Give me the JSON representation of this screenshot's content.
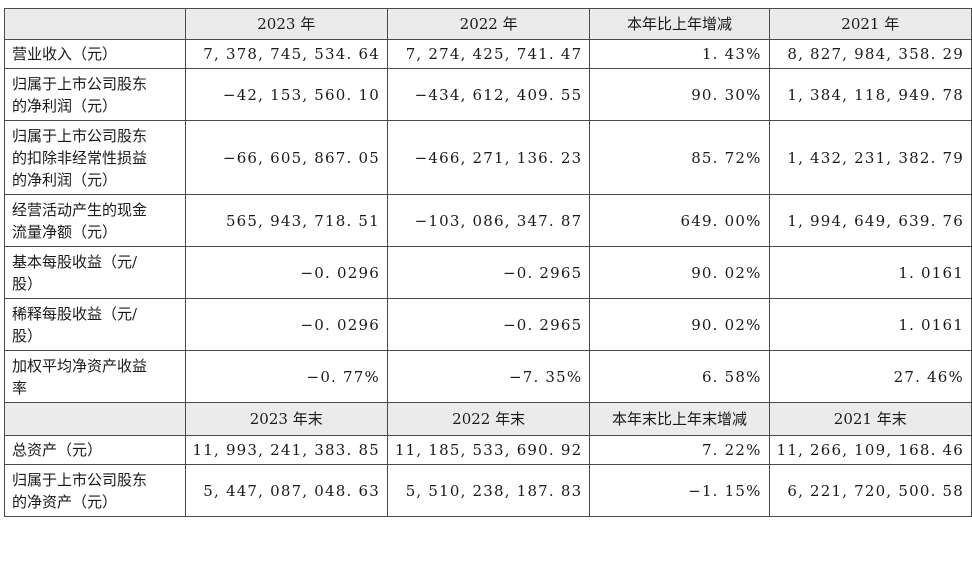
{
  "header1": [
    "",
    "2023 年",
    "2022 年",
    "本年比上年增减",
    "2021 年"
  ],
  "section1": [
    {
      "label": [
        "营业收入（元）"
      ],
      "values": [
        "7, 378, 745, 534. 64",
        "7, 274, 425, 741. 47",
        "1. 43%",
        "8, 827, 984, 358. 29"
      ]
    },
    {
      "label": [
        "归属于上市公司股东",
        "的净利润（元）"
      ],
      "values": [
        "−42, 153, 560. 10",
        "−434, 612, 409. 55",
        "90. 30%",
        "1, 384, 118, 949. 78"
      ]
    },
    {
      "label": [
        "归属于上市公司股东",
        "的扣除非经常性损益",
        "的净利润（元）"
      ],
      "values": [
        "−66, 605, 867. 05",
        "−466, 271, 136. 23",
        "85. 72%",
        "1, 432, 231, 382. 79"
      ]
    },
    {
      "label": [
        "经营活动产生的现金",
        "流量净额（元）"
      ],
      "values": [
        "565, 943, 718. 51",
        "−103, 086, 347. 87",
        "649. 00%",
        "1, 994, 649, 639. 76"
      ]
    },
    {
      "label": [
        "基本每股收益（元/",
        "股）"
      ],
      "values": [
        "−0. 0296",
        "−0. 2965",
        "90. 02%",
        "1. 0161"
      ]
    },
    {
      "label": [
        "稀释每股收益（元/",
        "股）"
      ],
      "values": [
        "−0. 0296",
        "−0. 2965",
        "90. 02%",
        "1. 0161"
      ]
    },
    {
      "label": [
        "加权平均净资产收益",
        "率"
      ],
      "values": [
        "−0. 77%",
        "−7. 35%",
        "6. 58%",
        "27. 46%"
      ]
    }
  ],
  "header2": [
    "",
    "2023 年末",
    "2022 年末",
    "本年末比上年末增减",
    "2021 年末"
  ],
  "section2": [
    {
      "label": [
        "总资产（元）"
      ],
      "values": [
        "11, 993, 241, 383. 85",
        "11, 185, 533, 690. 92",
        "7. 22%",
        "11, 266, 109, 168. 46"
      ]
    },
    {
      "label": [
        "归属于上市公司股东",
        "的净资产（元）"
      ],
      "values": [
        "5, 447, 087, 048. 63",
        "5, 510, 238, 187. 83",
        "−1. 15%",
        "6, 221, 720, 500. 58"
      ]
    }
  ]
}
